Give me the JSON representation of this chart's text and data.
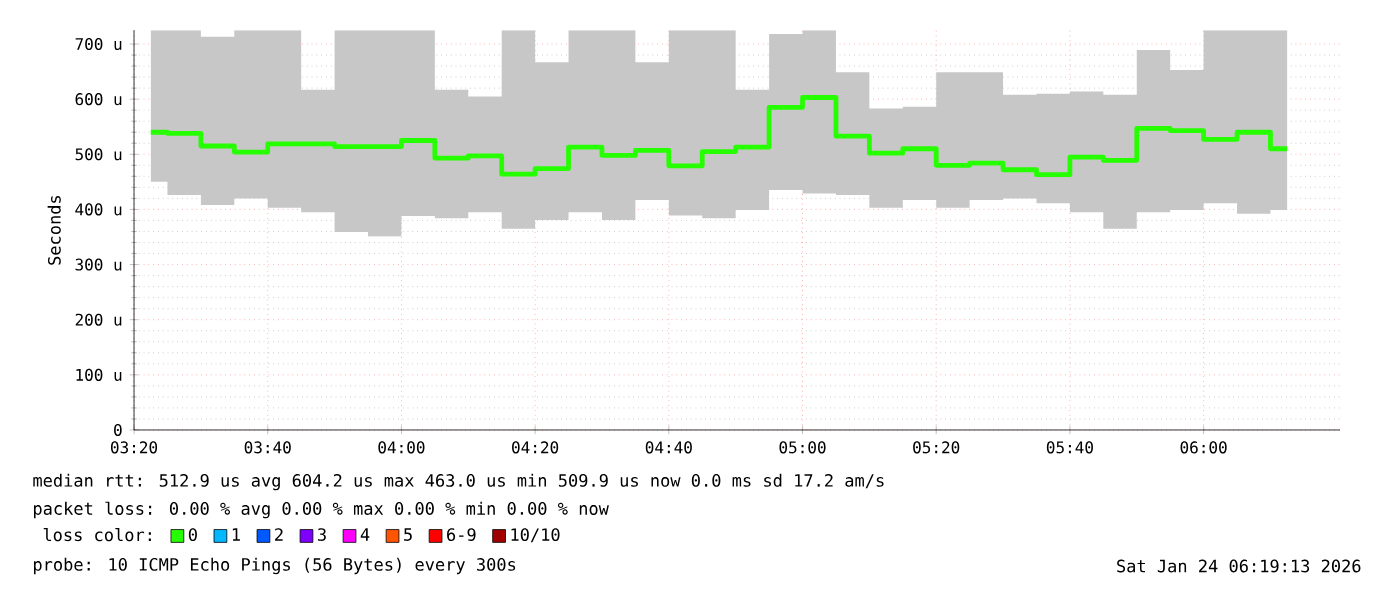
{
  "chart_data": {
    "type": "step",
    "ylabel": "Seconds",
    "x": [
      3.375,
      3.4583,
      3.5417,
      3.625,
      3.7083,
      3.7917,
      3.875,
      3.9583,
      4.0417,
      4.125,
      4.2083,
      4.2917,
      4.375,
      4.4583,
      4.5417,
      4.625,
      4.7083,
      4.7917,
      4.875,
      4.9583,
      5.0417,
      5.125,
      5.2083,
      5.2917,
      5.375,
      5.4583,
      5.5417,
      5.625,
      5.7083,
      5.7917,
      5.875,
      5.9583,
      6.0417,
      6.125,
      6.2083
    ],
    "series": [
      {
        "name": "0",
        "color": "#26ff00",
        "values": [
          540,
          538,
          515,
          504,
          519,
          519,
          514,
          514,
          525,
          493,
          497,
          464,
          474,
          513,
          498,
          507,
          479,
          505,
          513,
          585,
          603,
          533,
          502,
          510,
          480,
          484,
          472,
          463,
          495,
          489,
          547,
          543,
          527,
          540,
          510
        ],
        "lower": [
          450,
          426,
          408,
          420,
          403,
          395,
          359,
          351,
          388,
          384,
          395,
          365,
          381,
          395,
          381,
          417,
          389,
          384,
          399,
          435,
          429,
          426,
          403,
          417,
          403,
          417,
          420,
          411,
          395,
          365,
          395,
          399,
          411,
          392,
          399
        ],
        "upper": [
          725,
          725,
          713,
          725,
          725,
          617,
          725,
          725,
          725,
          617,
          605,
          725,
          667,
          725,
          725,
          667,
          725,
          725,
          617,
          718,
          725,
          649,
          583,
          586,
          649,
          649,
          608,
          610,
          614,
          608,
          689,
          653,
          725,
          725,
          725
        ]
      },
      {
        "name": "1",
        "color": "#00b8ff",
        "values": [
          null,
          null,
          null,
          null,
          null,
          null,
          null,
          null,
          null,
          null,
          null,
          null,
          null,
          null,
          null,
          null,
          null,
          null,
          null,
          null,
          null,
          null,
          null,
          null,
          null,
          null,
          null,
          null,
          null,
          null,
          null,
          null,
          null,
          null,
          null
        ]
      },
      {
        "name": "2",
        "color": "#0059ff",
        "values": [
          null,
          null,
          null,
          null,
          null,
          null,
          null,
          null,
          null,
          null,
          null,
          null,
          null,
          null,
          null,
          null,
          null,
          null,
          null,
          null,
          null,
          null,
          null,
          null,
          null,
          null,
          null,
          null,
          null,
          null,
          null,
          null,
          null,
          null,
          null
        ]
      },
      {
        "name": "3",
        "color": "#7e00ff",
        "values": [
          null,
          null,
          null,
          null,
          null,
          null,
          null,
          null,
          null,
          null,
          null,
          null,
          null,
          null,
          null,
          null,
          null,
          null,
          null,
          null,
          null,
          null,
          null,
          null,
          null,
          null,
          null,
          null,
          null,
          null,
          null,
          null,
          null,
          null,
          null
        ]
      },
      {
        "name": "4",
        "color": "#ff00ff",
        "values": [
          null,
          null,
          null,
          null,
          null,
          null,
          null,
          null,
          null,
          null,
          null,
          null,
          null,
          null,
          null,
          null,
          null,
          null,
          null,
          null,
          null,
          null,
          null,
          null,
          null,
          null,
          null,
          null,
          null,
          null,
          null,
          null,
          null,
          null,
          null
        ]
      },
      {
        "name": "5",
        "color": "#ff5500",
        "values": [
          null,
          null,
          null,
          null,
          null,
          null,
          null,
          null,
          null,
          null,
          null,
          null,
          null,
          null,
          null,
          null,
          null,
          null,
          null,
          null,
          null,
          null,
          null,
          null,
          null,
          null,
          null,
          null,
          null,
          null,
          null,
          null,
          null,
          null,
          null
        ]
      },
      {
        "name": "6-9",
        "color": "#ff0000",
        "values": [
          null,
          null,
          null,
          null,
          null,
          null,
          null,
          null,
          null,
          null,
          null,
          null,
          null,
          null,
          null,
          null,
          null,
          null,
          null,
          null,
          null,
          null,
          null,
          null,
          null,
          null,
          null,
          null,
          null,
          null,
          null,
          null,
          null,
          null,
          null
        ]
      },
      {
        "name": "10/10",
        "color": "#a10000",
        "values": [
          null,
          null,
          null,
          null,
          null,
          null,
          null,
          null,
          null,
          null,
          null,
          null,
          null,
          null,
          null,
          null,
          null,
          null,
          null,
          null,
          null,
          null,
          null,
          null,
          null,
          null,
          null,
          null,
          null,
          null,
          null,
          null,
          null,
          null,
          null
        ]
      }
    ],
    "legend_title": "loss color:",
    "legend": "bottom",
    "xlim": [
      3.3333,
      6.34
    ],
    "xticks": [
      {
        "value": 3.3333,
        "label": "03:20"
      },
      {
        "value": 3.6667,
        "label": "03:40"
      },
      {
        "value": 4,
        "label": "04:00"
      },
      {
        "value": 4.3333,
        "label": "04:20"
      },
      {
        "value": 4.6667,
        "label": "04:40"
      },
      {
        "value": 5,
        "label": "05:00"
      },
      {
        "value": 5.3333,
        "label": "05:20"
      },
      {
        "value": 5.6667,
        "label": "05:40"
      },
      {
        "value": 6,
        "label": "06:00"
      }
    ],
    "ylim": [
      0,
      725
    ],
    "yticks": [
      0,
      {
        "value": 100,
        "label": "100 u"
      },
      {
        "value": 200,
        "label": "200 u"
      },
      {
        "value": 300,
        "label": "300 u"
      },
      {
        "value": 400,
        "label": "400 u"
      },
      {
        "value": 500,
        "label": "500 u"
      },
      {
        "value": 600,
        "label": "600 u"
      },
      {
        "value": 700,
        "label": "700 u"
      }
    ],
    "grid": true,
    "annotations": [
      "median rtt:  512.9 us avg  604.2 us max  463.0 us min  509.9 us now  0.0 ms sd  17.2   am/s",
      "packet loss: 0.00 % avg  0.00 % max  0.00 % min  0.00 % now",
      "probe:       10 ICMP Echo Pings (56 Bytes) every 300s",
      "Sat Jan 24 06:19:13 2026"
    ]
  }
}
